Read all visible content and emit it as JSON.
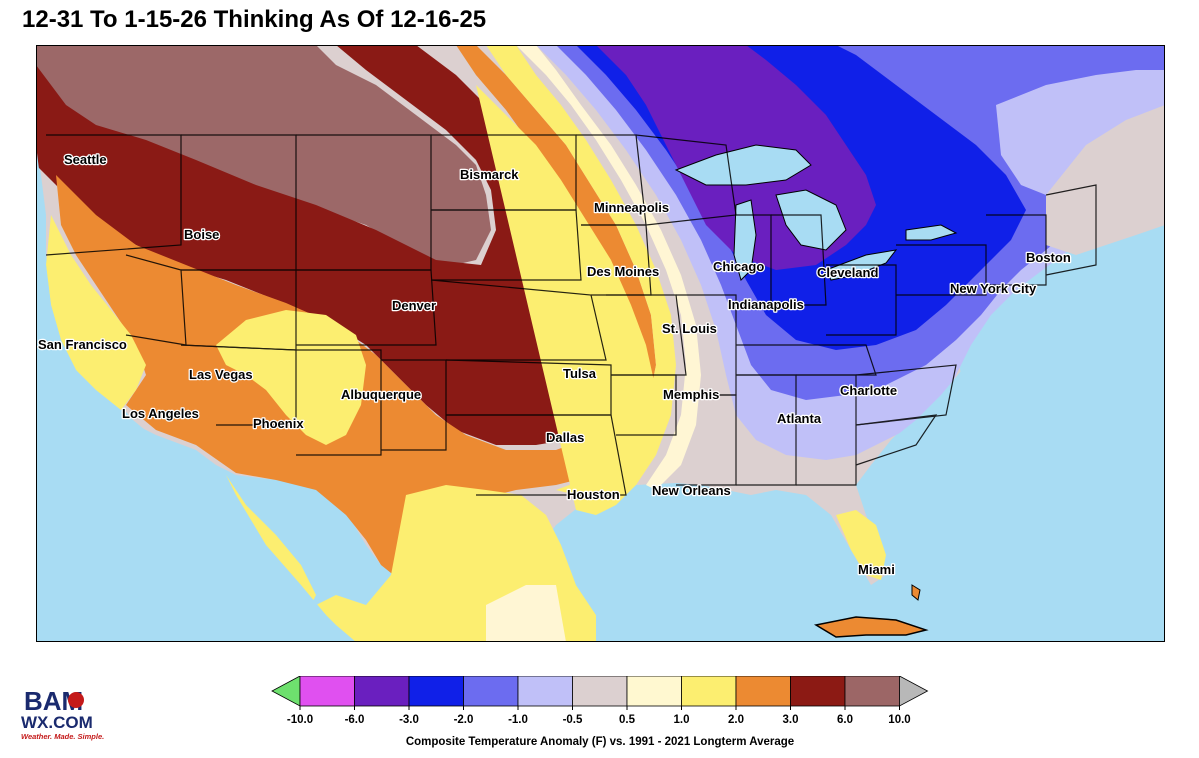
{
  "title": "12-31 To 1-15-26 Thinking As Of 12-16-25",
  "cities": [
    {
      "name": "Seattle"
    },
    {
      "name": "Boise"
    },
    {
      "name": "Bismarck"
    },
    {
      "name": "Minneapolis"
    },
    {
      "name": "San Francisco"
    },
    {
      "name": "Denver"
    },
    {
      "name": "Des Moines"
    },
    {
      "name": "Chicago"
    },
    {
      "name": "Cleveland"
    },
    {
      "name": "Boston"
    },
    {
      "name": "New York City"
    },
    {
      "name": "Indianapolis"
    },
    {
      "name": "St. Louis"
    },
    {
      "name": "Las Vegas"
    },
    {
      "name": "Albuquerque"
    },
    {
      "name": "Tulsa"
    },
    {
      "name": "Memphis"
    },
    {
      "name": "Charlotte"
    },
    {
      "name": "Los Angeles"
    },
    {
      "name": "Phoenix"
    },
    {
      "name": "Atlanta"
    },
    {
      "name": "Dallas"
    },
    {
      "name": "Houston"
    },
    {
      "name": "New Orleans"
    },
    {
      "name": "Miami"
    }
  ],
  "legend": {
    "ticks": [
      "-10.0",
      "-6.0",
      "-3.0",
      "-2.0",
      "-1.0",
      "-0.5",
      "0.5",
      "1.0",
      "2.0",
      "3.0",
      "6.0",
      "10.0"
    ],
    "colors": [
      "#6ee06e",
      "#e050f0",
      "#6a1fbf",
      "#1020e8",
      "#6c6cf0",
      "#c0c0f8",
      "#dcd0d0",
      "#fff8d0",
      "#fcee70",
      "#ec8a32",
      "#8c1a14",
      "#9c6666",
      "#b8b8b8"
    ],
    "caption": "Composite Temperature Anomaly (F) vs. 1991 - 2021 Longterm Average"
  },
  "logo": {
    "main": "BAM",
    "site": "WX.COM",
    "tagline": "Weather. Made. Simple."
  },
  "map_colors": {
    "ocean": "#aadcf2",
    "outside": "#9fd8f0"
  }
}
